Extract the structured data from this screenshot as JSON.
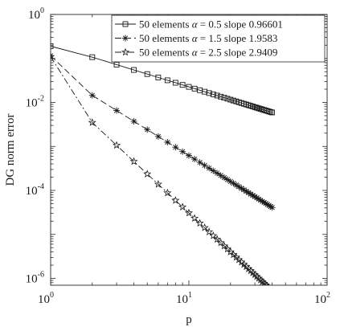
{
  "chart_data": {
    "type": "line",
    "xscale": "log",
    "yscale": "log",
    "xlim": [
      1,
      100
    ],
    "ylim": [
      7e-07,
      1
    ],
    "xlabel": "p",
    "ylabel": "DG norm error",
    "grid": false,
    "legend_position": "top-right",
    "x_ticks": [
      {
        "base": "10",
        "exp": "0",
        "value": 1
      },
      {
        "base": "10",
        "exp": "1",
        "value": 10
      },
      {
        "base": "10",
        "exp": "2",
        "value": 100
      }
    ],
    "y_ticks": [
      {
        "base": "10",
        "exp": "0",
        "value": 1
      },
      {
        "base": "10",
        "exp": "-2",
        "value": 0.01
      },
      {
        "base": "10",
        "exp": "-4",
        "value": 0.0001
      },
      {
        "base": "10",
        "exp": "-6",
        "value": 1e-06
      }
    ],
    "x": [
      1,
      2,
      3,
      4,
      5,
      6,
      7,
      8,
      9,
      10,
      11,
      12,
      13,
      14,
      15,
      16,
      17,
      18,
      19,
      20,
      21,
      22,
      23,
      24,
      25,
      26,
      27,
      28,
      29,
      30,
      31,
      32,
      33,
      34,
      35,
      36,
      37,
      38,
      39,
      40
    ],
    "series": [
      {
        "legend_prefix": "50 elements",
        "alpha_symbol": "α",
        "alpha_text": " = 0.5 slope 0.96601",
        "marker": "square",
        "dash": "none",
        "y1": 0.19,
        "p2": 0.107,
        "slope": 0.96601
      },
      {
        "legend_prefix": "50 elements",
        "alpha_symbol": "α",
        "alpha_text": " = 1.5 slope 1.9583",
        "marker": "asterisk",
        "dash": "8,4",
        "y1": 0.115,
        "p2": 0.0145,
        "slope": 1.9583
      },
      {
        "legend_prefix": "50 elements",
        "alpha_symbol": "α",
        "alpha_text": " = 2.5 slope 2.9409",
        "marker": "star",
        "dash": "8,3,2,3",
        "y1": 0.11,
        "p2": 0.0035,
        "slope": 2.9409
      }
    ]
  }
}
